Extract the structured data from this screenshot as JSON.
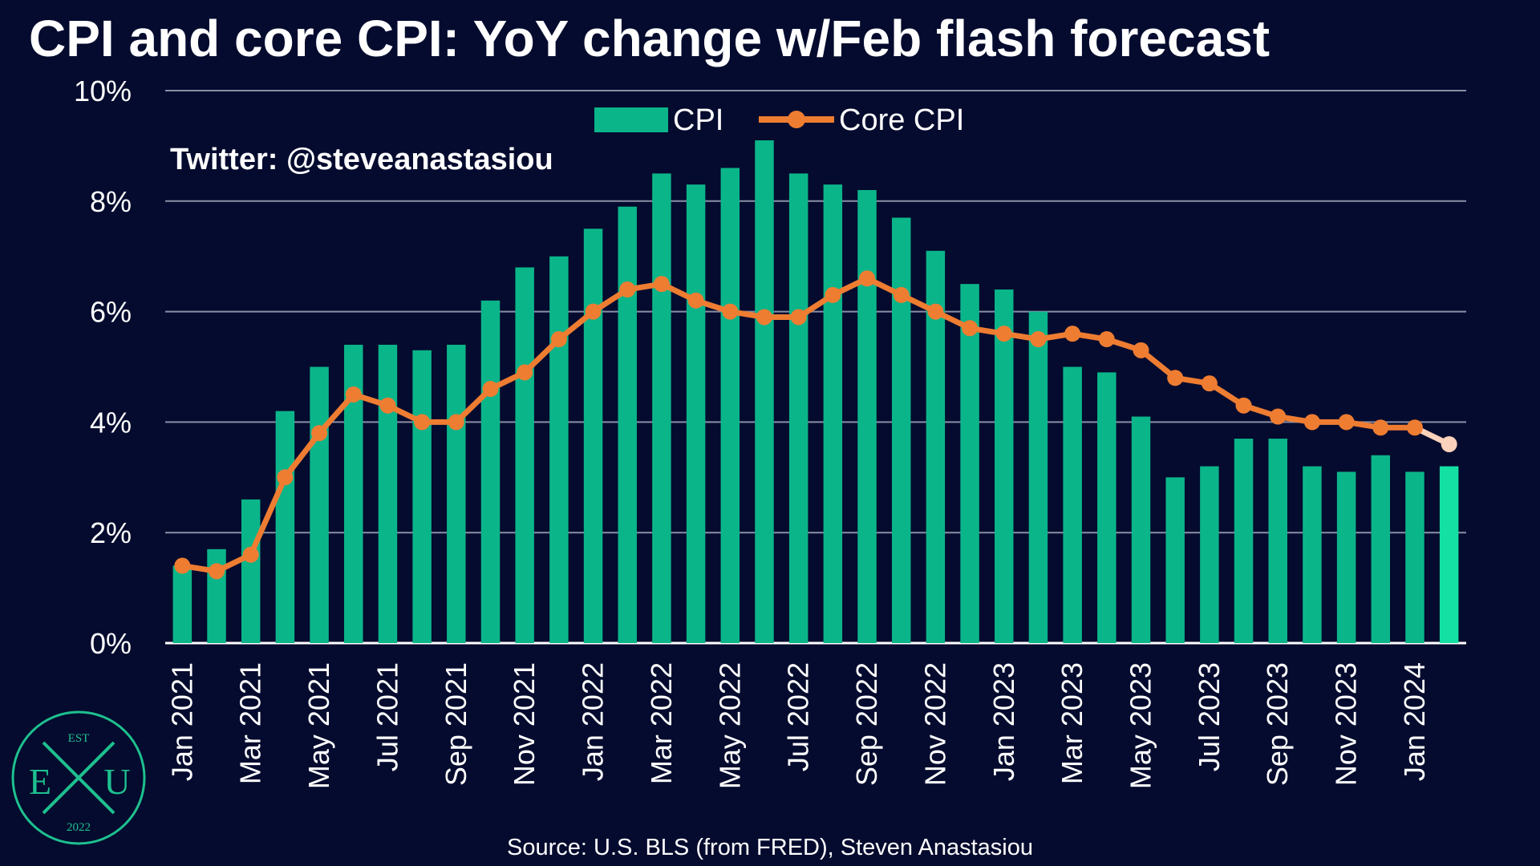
{
  "chart_data": {
    "type": "bar",
    "title": "CPI and core CPI: YoY change w/Feb flash forecast",
    "watermark": "Twitter: @steveanastasiou",
    "source": "Source: U.S. BLS (from FRED), Steven Anastasiou",
    "ylim": [
      0,
      10
    ],
    "yticks": [
      "0%",
      "2%",
      "4%",
      "6%",
      "8%",
      "10%"
    ],
    "grid": true,
    "legend_position": "top-center",
    "categories": [
      "Jan 2021",
      "Feb 2021",
      "Mar 2021",
      "Apr 2021",
      "May 2021",
      "Jun 2021",
      "Jul 2021",
      "Aug 2021",
      "Sep 2021",
      "Oct 2021",
      "Nov 2021",
      "Dec 2021",
      "Jan 2022",
      "Feb 2022",
      "Mar 2022",
      "Apr 2022",
      "May 2022",
      "Jun 2022",
      "Jul 2022",
      "Aug 2022",
      "Sep 2022",
      "Oct 2022",
      "Nov 2022",
      "Dec 2022",
      "Jan 2023",
      "Feb 2023",
      "Mar 2023",
      "Apr 2023",
      "May 2023",
      "Jun 2023",
      "Jul 2023",
      "Aug 2023",
      "Sep 2023",
      "Oct 2023",
      "Nov 2023",
      "Dec 2023",
      "Jan 2024",
      "Feb 2024"
    ],
    "tick_labels": [
      "Jan 2021",
      "Mar 2021",
      "May 2021",
      "Jul 2021",
      "Sep 2021",
      "Nov 2021",
      "Jan 2022",
      "Mar 2022",
      "May 2022",
      "Jul 2022",
      "Sep 2022",
      "Nov 2022",
      "Jan 2023",
      "Mar 2023",
      "May 2023",
      "Jul 2023",
      "Sep 2023",
      "Nov 2023",
      "Jan 2024"
    ],
    "series": [
      {
        "name": "CPI",
        "type": "bar",
        "color": "#0bb58a",
        "forecast_color": "#14e0a4",
        "values": [
          1.4,
          1.7,
          2.6,
          4.2,
          5.0,
          5.4,
          5.4,
          5.3,
          5.4,
          6.2,
          6.8,
          7.0,
          7.5,
          7.9,
          8.5,
          8.3,
          8.6,
          9.1,
          8.5,
          8.3,
          8.2,
          7.7,
          7.1,
          6.5,
          6.4,
          6.0,
          5.0,
          4.9,
          4.1,
          3.0,
          3.2,
          3.7,
          3.7,
          3.2,
          3.1,
          3.4,
          3.1,
          3.2
        ]
      },
      {
        "name": "Core CPI",
        "type": "line",
        "color": "#ee7d32",
        "forecast_color": "#fbd2bb",
        "values": [
          1.4,
          1.3,
          1.6,
          3.0,
          3.8,
          4.5,
          4.3,
          4.0,
          4.0,
          4.6,
          4.9,
          5.5,
          6.0,
          6.4,
          6.5,
          6.2,
          6.0,
          5.9,
          5.9,
          6.3,
          6.6,
          6.3,
          6.0,
          5.7,
          5.6,
          5.5,
          5.6,
          5.5,
          5.3,
          4.8,
          4.7,
          4.3,
          4.1,
          4.0,
          4.0,
          3.9,
          3.9,
          3.6
        ]
      }
    ]
  },
  "logo": {
    "top": "EST",
    "left": "E",
    "middle": "X",
    "right": "U",
    "bottom": "2022",
    "color": "#1ec08f"
  }
}
